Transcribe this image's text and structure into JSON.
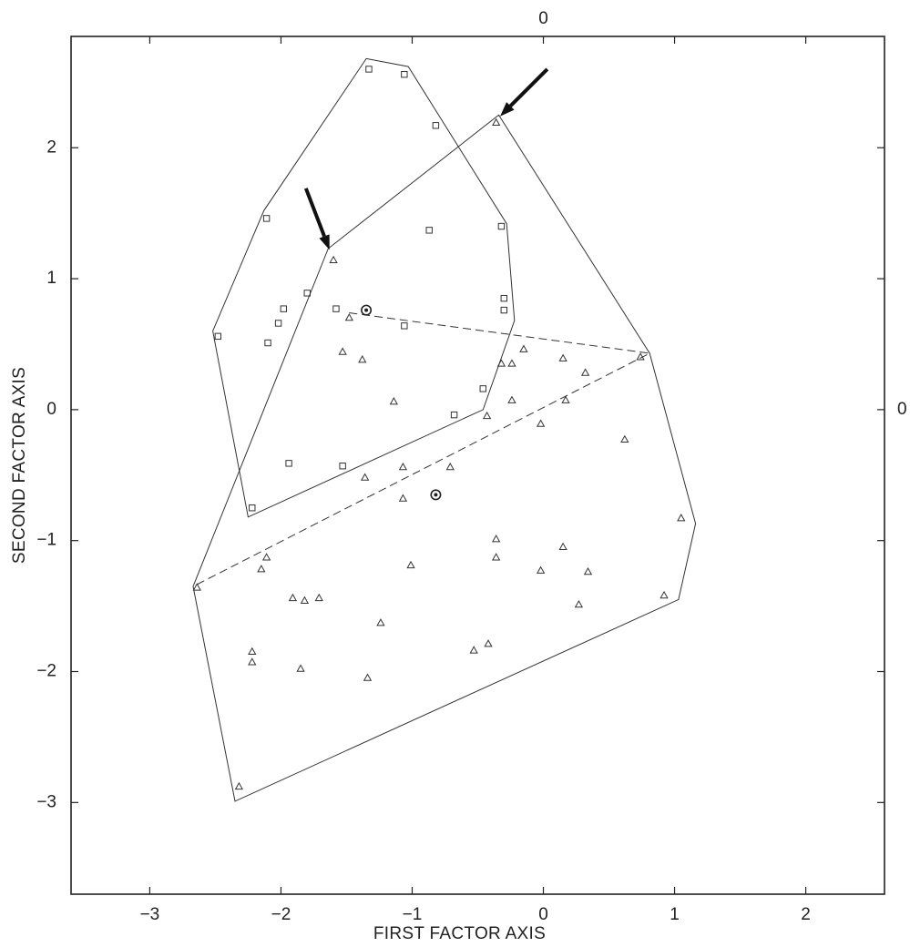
{
  "chart_data": {
    "type": "scatter",
    "title": "",
    "xlabel": "FIRST FACTOR AXIS",
    "ylabel": "SECOND FACTOR AXIS",
    "xlim": [
      -3.6,
      2.6
    ],
    "ylim": [
      -3.7,
      2.85
    ],
    "x_ticks": [
      -3,
      -2,
      -1,
      0,
      1,
      2
    ],
    "y_ticks": [
      -3,
      -2,
      -1,
      0,
      1,
      2
    ],
    "top_axis_label": "0",
    "right_axis_label": "0",
    "grid": false,
    "series": [
      {
        "marker": "square",
        "points": [
          [
            -1.33,
            2.6
          ],
          [
            -1.06,
            2.56
          ],
          [
            -0.82,
            2.17
          ],
          [
            -2.11,
            1.46
          ],
          [
            -0.87,
            1.37
          ],
          [
            -0.32,
            1.4
          ],
          [
            -0.3,
            0.85
          ],
          [
            -0.3,
            0.76
          ],
          [
            -1.98,
            0.77
          ],
          [
            -1.8,
            0.89
          ],
          [
            -1.58,
            0.77
          ],
          [
            -2.02,
            0.66
          ],
          [
            -2.48,
            0.56
          ],
          [
            -2.1,
            0.51
          ],
          [
            -1.06,
            0.64
          ],
          [
            -0.46,
            0.16
          ],
          [
            -0.68,
            -0.04
          ],
          [
            -1.94,
            -0.41
          ],
          [
            -1.53,
            -0.43
          ],
          [
            -2.22,
            -0.75
          ]
        ]
      },
      {
        "marker": "triangle",
        "points": [
          [
            -0.36,
            2.19
          ],
          [
            -1.6,
            1.14
          ],
          [
            -1.48,
            0.7
          ],
          [
            -1.53,
            0.44
          ],
          [
            -1.38,
            0.38
          ],
          [
            -0.32,
            0.35
          ],
          [
            -0.24,
            0.35
          ],
          [
            -0.15,
            0.46
          ],
          [
            0.15,
            0.39
          ],
          [
            0.32,
            0.28
          ],
          [
            0.74,
            0.4
          ],
          [
            -1.14,
            0.06
          ],
          [
            -0.24,
            0.07
          ],
          [
            0.17,
            0.07
          ],
          [
            -0.43,
            -0.05
          ],
          [
            -0.02,
            -0.11
          ],
          [
            0.62,
            -0.23
          ],
          [
            -1.36,
            -0.52
          ],
          [
            -1.07,
            -0.44
          ],
          [
            -0.71,
            -0.44
          ],
          [
            -1.07,
            -0.68
          ],
          [
            1.05,
            -0.83
          ],
          [
            -0.36,
            -0.99
          ],
          [
            -2.11,
            -1.13
          ],
          [
            -0.36,
            -1.13
          ],
          [
            0.15,
            -1.05
          ],
          [
            -2.15,
            -1.22
          ],
          [
            -0.02,
            -1.23
          ],
          [
            0.34,
            -1.24
          ],
          [
            -2.64,
            -1.36
          ],
          [
            -1.01,
            -1.19
          ],
          [
            -1.91,
            -1.44
          ],
          [
            -1.82,
            -1.46
          ],
          [
            -1.71,
            -1.44
          ],
          [
            0.92,
            -1.42
          ],
          [
            0.27,
            -1.49
          ],
          [
            -1.24,
            -1.63
          ],
          [
            -2.22,
            -1.85
          ],
          [
            -2.22,
            -1.93
          ],
          [
            -0.53,
            -1.84
          ],
          [
            -0.42,
            -1.79
          ],
          [
            -1.85,
            -1.98
          ],
          [
            -1.34,
            -2.05
          ],
          [
            -2.32,
            -2.88
          ]
        ]
      },
      {
        "marker": "circle-centroid",
        "points": [
          [
            -1.35,
            0.76
          ],
          [
            -0.82,
            -0.65
          ]
        ]
      }
    ],
    "hulls": [
      {
        "style": "solid",
        "vertices": [
          [
            -1.35,
            2.68
          ],
          [
            -1.03,
            2.62
          ],
          [
            -0.28,
            1.42
          ],
          [
            -0.22,
            0.68
          ],
          [
            -0.46,
            0.0
          ],
          [
            -2.25,
            -0.82
          ],
          [
            -2.52,
            0.6
          ],
          [
            -2.13,
            1.52
          ]
        ]
      },
      {
        "style": "solid",
        "vertices": [
          [
            -0.34,
            2.25
          ],
          [
            0.81,
            0.43
          ],
          [
            1.16,
            -0.87
          ],
          [
            1.03,
            -1.45
          ],
          [
            -2.35,
            -2.99
          ],
          [
            -2.67,
            -1.35
          ],
          [
            -1.64,
            1.23
          ]
        ]
      },
      {
        "style": "dashed",
        "vertices": [
          [
            -1.48,
            0.74
          ],
          [
            0.81,
            0.43
          ],
          [
            -2.67,
            -1.35
          ]
        ]
      }
    ],
    "arrows": [
      {
        "from": [
          -1.81,
          1.69
        ],
        "to": [
          -1.63,
          1.22
        ]
      },
      {
        "from": [
          0.03,
          2.6
        ],
        "to": [
          -0.33,
          2.24
        ]
      }
    ]
  }
}
